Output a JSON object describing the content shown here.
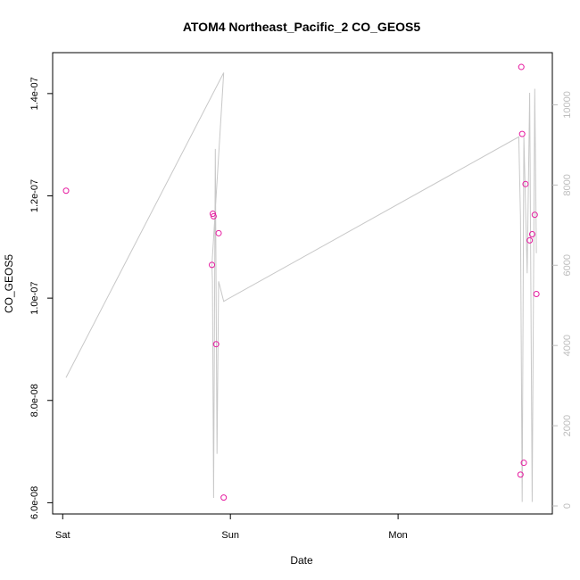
{
  "chart_data": {
    "type": "scatter",
    "title": "ATOM4 Northeast_Pacific_2 CO_GEOS5",
    "xlabel": "Date",
    "ylabel": "CO_GEOS5",
    "x_ticks": [
      {
        "label": "Sat",
        "value": 0
      },
      {
        "label": "Sun",
        "value": 1
      },
      {
        "label": "Mon",
        "value": 2
      }
    ],
    "xlim": [
      -0.06,
      2.92
    ],
    "y_left": {
      "ticks": [
        "6.0e-08",
        "8.0e-08",
        "1.0e-07",
        "1.2e-07",
        "1.4e-07"
      ],
      "tick_values": [
        6e-08,
        8e-08,
        1e-07,
        1.2e-07,
        1.4e-07
      ],
      "ylim": [
        5.78e-08,
        1.48e-07
      ]
    },
    "y_right": {
      "ticks": [
        "0",
        "2000",
        "4000",
        "6000",
        "8000",
        "10000"
      ],
      "tick_values": [
        0,
        2000,
        4000,
        6000,
        8000,
        10000
      ],
      "ylim": [
        -200,
        11300
      ]
    },
    "colors": {
      "points": "#e6199f",
      "altitude_line": "#c8c8c8",
      "right_axis": "#bdbdbd"
    },
    "series": [
      {
        "axis": "left",
        "marker": "circle",
        "x": [
          0.02,
          0.89,
          0.895,
          0.9,
          0.915,
          0.93,
          0.96,
          2.73,
          2.735,
          2.74,
          2.75,
          2.76,
          2.785,
          2.8,
          2.815,
          2.825
        ],
        "values": [
          1.21e-07,
          1.065e-07,
          1.165e-07,
          1.16e-07,
          9.1e-08,
          1.127e-07,
          6.1e-08,
          6.55e-08,
          1.452e-07,
          1.321e-07,
          6.78e-08,
          1.223e-07,
          1.113e-07,
          1.125e-07,
          1.163e-07,
          1.008e-07
        ]
      },
      {
        "axis": "right",
        "marker": "line",
        "x": [
          0.02,
          0.96,
          0.89,
          0.893,
          0.9,
          0.91,
          0.92,
          0.93,
          0.96,
          2.72,
          2.73,
          2.74,
          2.75,
          2.77,
          2.785,
          2.8,
          2.815,
          2.825
        ],
        "values": [
          3200,
          10800,
          6000,
          5600,
          200,
          8900,
          1300,
          5600,
          5100,
          9200,
          7200,
          100,
          9200,
          5800,
          10300,
          100,
          10400,
          6300
        ]
      }
    ]
  }
}
